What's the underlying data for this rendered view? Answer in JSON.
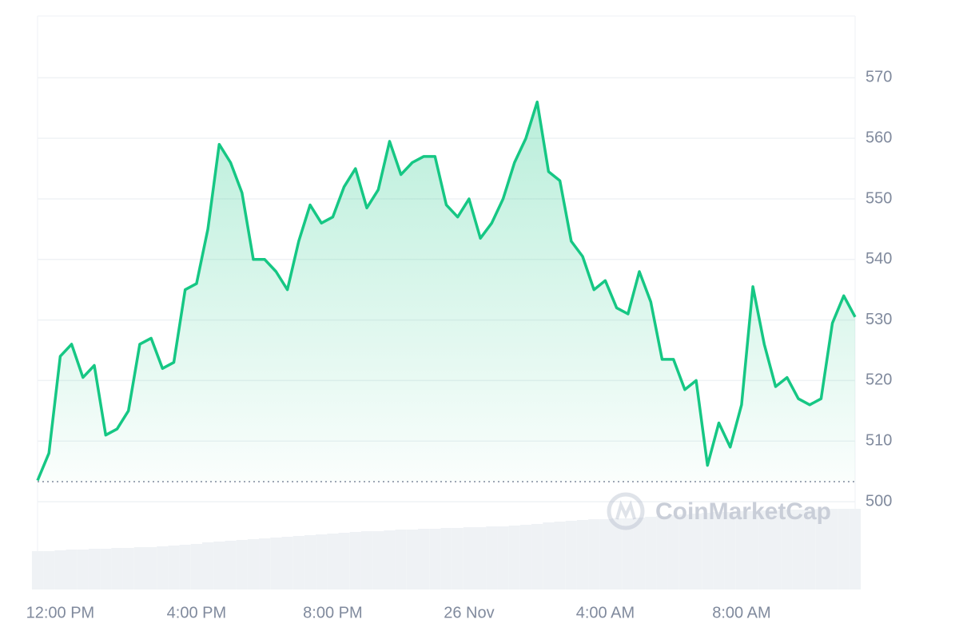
{
  "chart_data": {
    "type": "area",
    "watermark": "CoinMarketCap",
    "categories": [
      null,
      null,
      "12:00 PM",
      null,
      null,
      null,
      null,
      null,
      null,
      null,
      null,
      null,
      null,
      null,
      "4:00 PM",
      null,
      null,
      null,
      null,
      null,
      null,
      null,
      null,
      null,
      null,
      null,
      "8:00 PM",
      null,
      null,
      null,
      null,
      null,
      null,
      null,
      null,
      null,
      null,
      null,
      "26 Nov",
      null,
      null,
      null,
      null,
      null,
      null,
      null,
      null,
      null,
      null,
      null,
      "4:00 AM",
      null,
      null,
      null,
      null,
      null,
      null,
      null,
      null,
      null,
      null,
      null,
      "8:00 AM",
      null,
      null,
      null,
      null,
      null,
      null,
      null,
      null,
      null,
      null
    ],
    "series": [
      {
        "color": "#16c784",
        "values": [
          503.5,
          508,
          524,
          526,
          520.5,
          522.5,
          511,
          512,
          515,
          526,
          527,
          522,
          523,
          535,
          536,
          545,
          559,
          556,
          551,
          540,
          540,
          538,
          535,
          543,
          549,
          546,
          547,
          552,
          555,
          548.5,
          551.5,
          559.5,
          554,
          556,
          557,
          557,
          549,
          547,
          550,
          543.5,
          546,
          550,
          556,
          560,
          566,
          554.5,
          553,
          543,
          540.5,
          535,
          536.5,
          532,
          531,
          538,
          533,
          523.5,
          523.5,
          518.5,
          520,
          506,
          513,
          509,
          516,
          535.5,
          526,
          519,
          520.5,
          517,
          516,
          517,
          529.5,
          534,
          530.5
        ]
      }
    ],
    "baseline": 503.3,
    "volume": {
      "color": "#eff2f5",
      "ylim": [
        0,
        110
      ],
      "values": [
        48,
        48,
        49,
        50,
        50,
        51,
        51,
        52,
        52,
        53,
        53,
        54,
        55,
        56,
        57,
        59,
        60,
        61,
        62,
        63,
        64,
        65,
        66,
        67,
        68,
        69,
        70,
        71,
        72,
        73,
        73,
        74,
        75,
        75,
        76,
        76,
        77,
        77,
        78,
        78,
        79,
        79,
        80,
        81,
        82,
        84,
        85,
        86,
        87,
        88,
        88,
        89,
        89,
        90,
        91,
        92,
        93,
        94,
        95,
        96,
        97,
        97,
        98,
        98,
        99,
        99,
        100,
        100,
        100,
        101,
        101,
        101,
        101
      ]
    },
    "ylim": [
      485.5,
      580.2
    ],
    "yticks": [
      500,
      510,
      520,
      530,
      540,
      550,
      560,
      570
    ],
    "grid": true
  }
}
